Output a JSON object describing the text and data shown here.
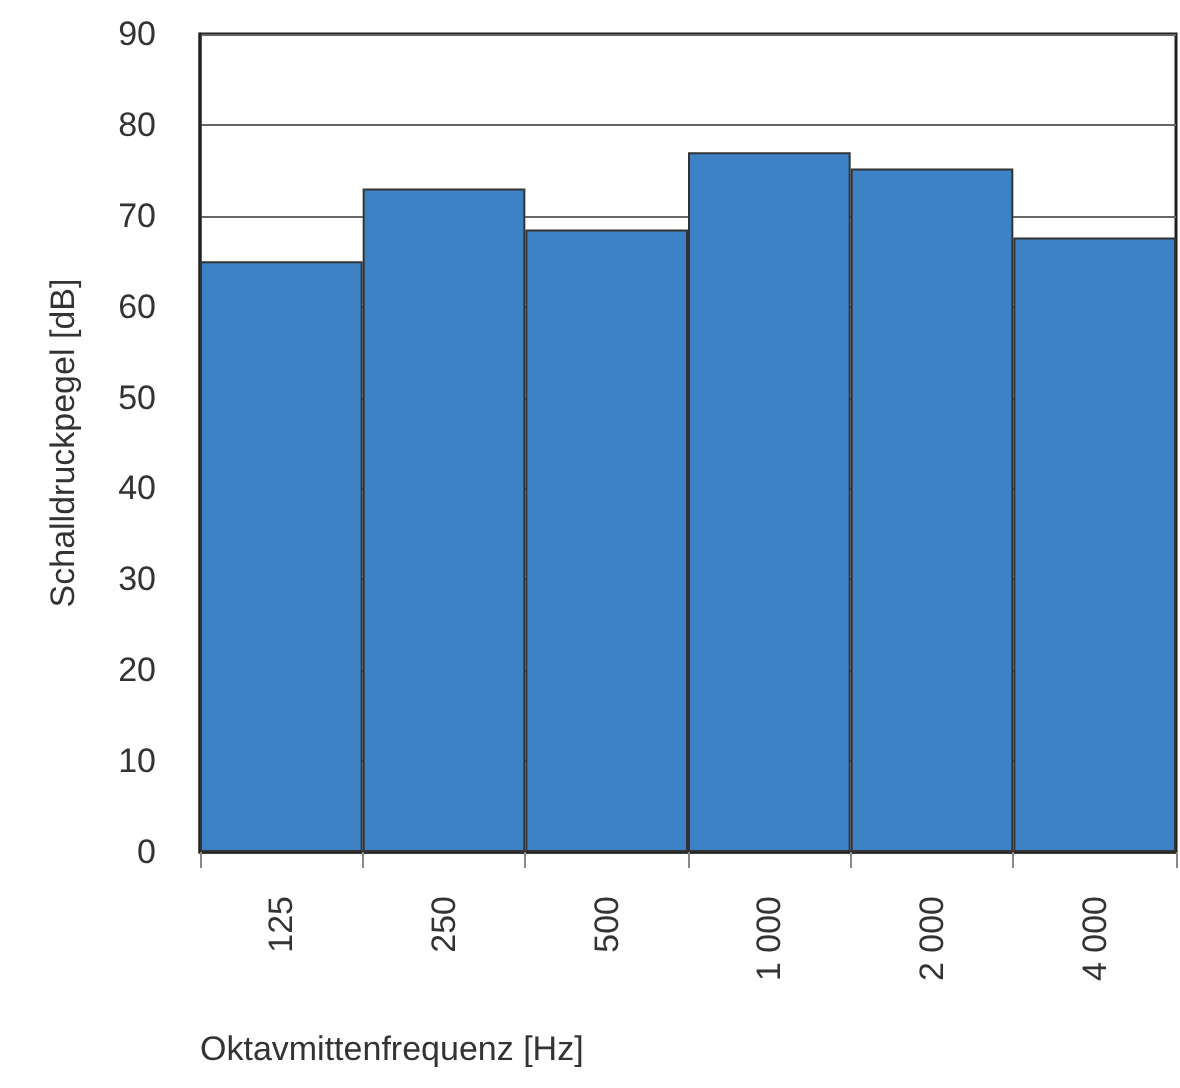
{
  "chart_data": {
    "type": "bar",
    "xlabel": "Oktavmittenfrequenz [Hz]",
    "ylabel": "Schalldruckpegel [dB]",
    "categories": [
      "125",
      "250",
      "500",
      "1 000",
      "2 000",
      "4 000"
    ],
    "values": [
      65,
      73,
      68.5,
      77,
      75.2,
      67.6
    ],
    "color": "#3d82c4",
    "ylim": [
      0,
      90
    ],
    "yticks": [
      0,
      10,
      20,
      30,
      40,
      50,
      60,
      70,
      80,
      90
    ],
    "grid": "y"
  }
}
